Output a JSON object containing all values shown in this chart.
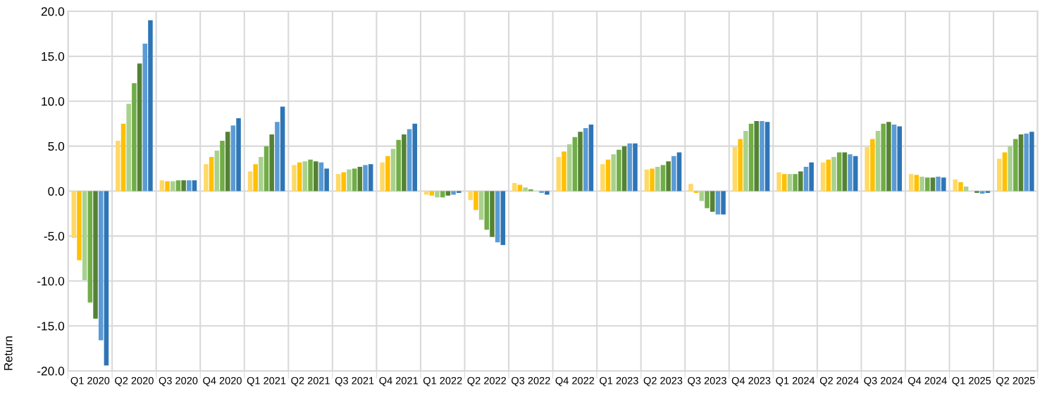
{
  "chart_data": {
    "type": "bar",
    "ylabel": "Return",
    "categories": [
      "Q1 2020",
      "Q2 2020",
      "Q3 2020",
      "Q4 2020",
      "Q1 2021",
      "Q2 2021",
      "Q3 2021",
      "Q4 2021",
      "Q1 2022",
      "Q2 2022",
      "Q3 2022",
      "Q4 2022",
      "Q1 2023",
      "Q2 2023",
      "Q3 2023",
      "Q4 2023",
      "Q1 2024",
      "Q2 2024",
      "Q3 2024",
      "Q4 2024",
      "Q1 2025",
      "Q2 2025"
    ],
    "series": [
      {
        "color": "#ffd966",
        "values": [
          -5.2,
          5.6,
          1.2,
          3.0,
          2.2,
          2.9,
          1.9,
          3.2,
          -0.4,
          -1.0,
          0.9,
          3.8,
          3.0,
          2.4,
          0.8,
          4.9,
          2.1,
          3.2,
          4.9,
          1.9,
          1.3,
          3.6
        ]
      },
      {
        "color": "#ffc000",
        "values": [
          -7.7,
          7.5,
          1.1,
          3.8,
          3.0,
          3.2,
          2.1,
          3.9,
          -0.5,
          -2.1,
          0.7,
          4.4,
          3.5,
          2.5,
          -0.2,
          5.8,
          1.9,
          3.5,
          5.8,
          1.8,
          1.0,
          4.3
        ]
      },
      {
        "color": "#a9d18e",
        "values": [
          -9.9,
          9.7,
          1.1,
          4.5,
          3.8,
          3.3,
          2.4,
          4.7,
          -0.7,
          -3.2,
          0.4,
          5.2,
          4.1,
          2.7,
          -1.1,
          6.7,
          1.9,
          3.8,
          6.7,
          1.6,
          0.5,
          5.0
        ]
      },
      {
        "color": "#70ad47",
        "values": [
          -12.4,
          12.0,
          1.2,
          5.6,
          5.0,
          3.5,
          2.5,
          5.7,
          -0.7,
          -4.3,
          0.2,
          6.0,
          4.6,
          2.9,
          -1.9,
          7.5,
          1.9,
          4.3,
          7.5,
          1.5,
          0.0,
          5.8
        ]
      },
      {
        "color": "#548235",
        "values": [
          -14.2,
          14.2,
          1.2,
          6.6,
          6.3,
          3.3,
          2.7,
          6.3,
          -0.5,
          -5.1,
          0.0,
          6.6,
          5.0,
          3.3,
          -2.3,
          7.8,
          2.2,
          4.3,
          7.7,
          1.5,
          -0.2,
          6.3
        ]
      },
      {
        "color": "#5b9bd5",
        "values": [
          -16.6,
          16.4,
          1.2,
          7.3,
          7.7,
          3.2,
          2.9,
          6.9,
          -0.4,
          -5.7,
          -0.2,
          7.0,
          5.3,
          3.9,
          -2.6,
          7.8,
          2.7,
          4.1,
          7.4,
          1.6,
          -0.3,
          6.4
        ]
      },
      {
        "color": "#2e75b6",
        "values": [
          -19.4,
          19.0,
          1.2,
          8.1,
          9.4,
          2.5,
          3.0,
          7.5,
          -0.2,
          -6.0,
          -0.4,
          7.4,
          5.3,
          4.3,
          -2.6,
          7.7,
          3.2,
          3.9,
          7.2,
          1.5,
          -0.2,
          6.6
        ]
      }
    ],
    "ylim": [
      -20,
      20
    ],
    "yticks": [
      {
        "value": -20,
        "label": "-20.0"
      },
      {
        "value": -15,
        "label": "-15.0"
      },
      {
        "value": -10,
        "label": "-10.0"
      },
      {
        "value": -5,
        "label": "-5.0"
      },
      {
        "value": 0,
        "label": "0.0"
      },
      {
        "value": 5,
        "label": "5.0"
      },
      {
        "value": 10,
        "label": "10.0"
      },
      {
        "value": 15,
        "label": "15.0"
      },
      {
        "value": 20,
        "label": "20.0"
      }
    ],
    "grid": true
  }
}
